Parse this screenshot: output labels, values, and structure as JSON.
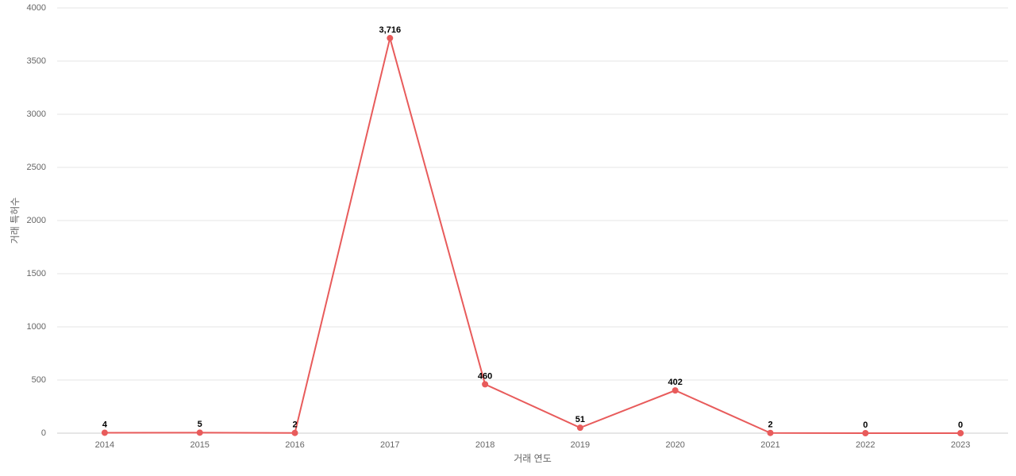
{
  "chart_data": {
    "type": "line",
    "x_label": "거래 연도",
    "y_label": "거래 특허수",
    "categories": [
      "2014",
      "2015",
      "2016",
      "2017",
      "2018",
      "2019",
      "2020",
      "2021",
      "2022",
      "2023"
    ],
    "values": [
      4,
      5,
      2,
      3716,
      460,
      51,
      402,
      2,
      0,
      0
    ],
    "value_labels": [
      "4",
      "5",
      "2",
      "3,716",
      "460",
      "51",
      "402",
      "2",
      "0",
      "0"
    ],
    "color": "#e85b5b",
    "ylim": [
      0,
      4000
    ],
    "yticks": [
      0,
      500,
      1000,
      1500,
      2000,
      2500,
      3000,
      3500,
      4000
    ],
    "grid": true
  }
}
